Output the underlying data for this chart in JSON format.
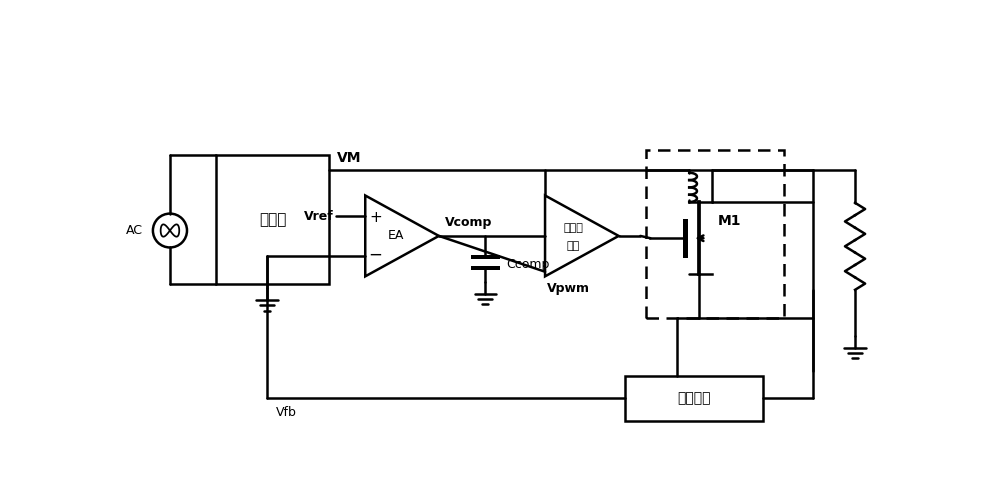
{
  "bg": "#ffffff",
  "lc": "#000000",
  "lw": 1.8,
  "fig_w": 10.0,
  "fig_h": 5.03,
  "labels": {
    "AC": "AC",
    "VM": "VM",
    "rectifier": "整流器",
    "Vref": "Vref",
    "EA": "EA",
    "plus": "+",
    "minus": "−",
    "Vcomp": "Vcomp",
    "Ccomp": "Ccomp",
    "pwm_line1": "脉宽调",
    "pwm_line2": "制器",
    "Vpwm": "Vpwm",
    "M1": "M1",
    "feedback": "反馈电路",
    "Vfb": "Vfb"
  }
}
